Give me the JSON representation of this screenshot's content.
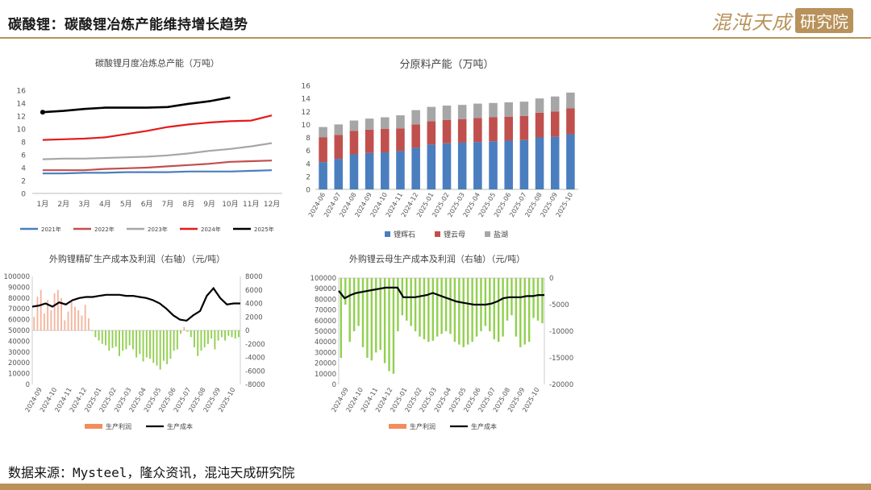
{
  "page": {
    "title": "碳酸锂：碳酸锂冶炼产能维持增长趋势",
    "logo_text": "混沌天成",
    "logo_box": "研究院",
    "source": "数据来源：Mysteel，隆众资讯，混沌天成研究院"
  },
  "colors": {
    "gold": "#b8925a"
  },
  "chart_data": [
    {
      "type": "line",
      "title": "碳酸锂月度冶炼总产能（万吨）",
      "categories": [
        "1月",
        "2月",
        "3月",
        "4月",
        "5月",
        "6月",
        "7月",
        "8月",
        "9月",
        "10月",
        "11月",
        "12月"
      ],
      "yticks": [
        "0",
        "2",
        "4",
        "6",
        "8",
        "10",
        "12",
        "14",
        "16"
      ],
      "ylim": [
        0,
        16
      ],
      "legend_position": "bottom",
      "series": [
        {
          "name": "2021年",
          "color": "#4a7ebf",
          "values": [
            3.1,
            3.1,
            3.2,
            3.2,
            3.3,
            3.3,
            3.3,
            3.4,
            3.4,
            3.4,
            3.5,
            3.6
          ]
        },
        {
          "name": "2022年",
          "color": "#c0504d",
          "values": [
            3.6,
            3.6,
            3.6,
            3.8,
            3.9,
            4.0,
            4.2,
            4.4,
            4.6,
            4.9,
            5.0,
            5.1
          ]
        },
        {
          "name": "2023年",
          "color": "#a6a6a6",
          "values": [
            5.3,
            5.4,
            5.4,
            5.5,
            5.6,
            5.7,
            5.9,
            6.2,
            6.6,
            6.9,
            7.3,
            7.8
          ]
        },
        {
          "name": "2024年",
          "color": "#e41a1c",
          "values": [
            8.3,
            8.4,
            8.5,
            8.7,
            9.2,
            9.7,
            10.3,
            10.7,
            11.0,
            11.2,
            11.3,
            12.1
          ]
        },
        {
          "name": "2025年",
          "color": "#000000",
          "values": [
            12.6,
            12.8,
            13.1,
            13.3,
            13.3,
            13.3,
            13.4,
            13.9,
            14.3,
            14.9,
            null,
            null
          ]
        }
      ]
    },
    {
      "type": "bar",
      "stacked": true,
      "title": "分原料产能（万吨）",
      "categories": [
        "2024-06",
        "2024-07",
        "2024-08",
        "2024-09",
        "2024-10",
        "2024-11",
        "2024-12",
        "2025-01",
        "2025-02",
        "2025-03",
        "2025-04",
        "2025-05",
        "2025-06",
        "2025-07",
        "2025-08",
        "2025-09",
        "2025-10"
      ],
      "yticks": [
        "0",
        "2",
        "4",
        "6",
        "8",
        "10",
        "12",
        "14",
        "16"
      ],
      "ylim": [
        0,
        16
      ],
      "legend_position": "bottom",
      "series": [
        {
          "name": "锂辉石",
          "color": "#4a7ebf",
          "values": [
            4.2,
            4.7,
            5.4,
            5.6,
            5.7,
            5.9,
            6.4,
            6.9,
            7.1,
            7.2,
            7.3,
            7.4,
            7.5,
            7.6,
            8.0,
            8.1,
            8.5
          ]
        },
        {
          "name": "锂云母",
          "color": "#c0504d",
          "values": [
            3.8,
            3.7,
            3.6,
            3.6,
            3.6,
            3.5,
            3.6,
            3.6,
            3.6,
            3.6,
            3.7,
            3.7,
            3.7,
            3.7,
            3.8,
            3.9,
            4.0
          ]
        },
        {
          "name": "盐湖",
          "color": "#a6a6a6",
          "values": [
            1.6,
            1.6,
            1.6,
            1.7,
            1.8,
            2.0,
            2.2,
            2.2,
            2.2,
            2.2,
            2.2,
            2.2,
            2.2,
            2.2,
            2.2,
            2.3,
            2.4
          ]
        }
      ]
    },
    {
      "type": "bar-line",
      "title": "外购锂精矿生产成本及利润（右轴）（元/吨）",
      "xticks": [
        "2024-09",
        "2024-10",
        "2024-11",
        "2024-12",
        "2025-01",
        "2025-02",
        "2025-03",
        "2025-04",
        "2025-05",
        "2025-06",
        "2025-07",
        "2025-08",
        "2025-09",
        "2025-10"
      ],
      "left_ticks": [
        "0",
        "10000",
        "20000",
        "30000",
        "40000",
        "50000",
        "60000",
        "70000",
        "80000",
        "90000",
        "100000"
      ],
      "right_ticks": [
        "-8000",
        "-6000",
        "-4000",
        "-2000",
        "0",
        "2000",
        "4000",
        "6000",
        "8000"
      ],
      "left_lim": [
        0,
        100000
      ],
      "right_lim": [
        -8000,
        8000
      ],
      "legend_position": "bottom",
      "series": [
        {
          "name": "生产利润",
          "color": "#f4a582",
          "axis": "right",
          "values": [
            2000,
            5000,
            6000,
            2500,
            4500,
            3000,
            5500,
            6000,
            4800,
            1500,
            2800,
            4200,
            3500,
            3000,
            2200,
            3800,
            1800,
            -100,
            -1000,
            -1500,
            -2000,
            -2200,
            -3000,
            -2600,
            -2400,
            -3800,
            -3000,
            -2800,
            -2200,
            -2800,
            -4000,
            -3500,
            -4600,
            -4000,
            -4200,
            -4800,
            -5200,
            -5800,
            -4500,
            -5000,
            -4200,
            -3000,
            -2800,
            -500,
            500,
            -200,
            -1000,
            -2500,
            -3800,
            -3000,
            -2500,
            -2000,
            -1200,
            -2800,
            -1500,
            -1000,
            -1500,
            -800,
            -1000,
            -1200,
            -1000
          ]
        },
        {
          "name": "生产成本",
          "color": "#000000",
          "axis": "left",
          "values": [
            72000,
            73000,
            75000,
            72000,
            76000,
            74000,
            78000,
            80000,
            81000,
            81000,
            82000,
            83000,
            83000,
            83000,
            82000,
            82000,
            81000,
            80000,
            78000,
            75000,
            70000,
            64000,
            60000,
            59000,
            64000,
            68000,
            82000,
            89000,
            80000,
            74000,
            75000,
            75000
          ]
        }
      ]
    },
    {
      "type": "bar-line",
      "title": "外购锂云母生产成本及利润（右轴）（元/吨）",
      "xticks": [
        "2024-09",
        "2024-10",
        "2024-11",
        "2024-12",
        "2025-01",
        "2025-02",
        "2025-03",
        "2025-04",
        "2025-05",
        "2025-06",
        "2025-07",
        "2025-08",
        "2025-09",
        "2025-10"
      ],
      "left_ticks": [
        "0",
        "10000",
        "20000",
        "30000",
        "40000",
        "50000",
        "60000",
        "70000",
        "80000",
        "90000",
        "100000"
      ],
      "right_ticks": [
        "-20000",
        "-15000",
        "-10000",
        "-5000",
        "0"
      ],
      "left_lim": [
        0,
        100000
      ],
      "right_lim": [
        -20000,
        0
      ],
      "legend_position": "bottom",
      "series": [
        {
          "name": "生产利润",
          "color": "#92d050",
          "axis": "right",
          "values": [
            -15000,
            -5000,
            -12000,
            -10000,
            -9000,
            -13000,
            -15000,
            -15500,
            -14000,
            -13500,
            -16000,
            -17500,
            -18000,
            -10000,
            -7000,
            -8000,
            -9000,
            -10000,
            -11000,
            -11500,
            -12000,
            -11800,
            -11000,
            -10500,
            -10000,
            -10500,
            -12000,
            -12500,
            -13000,
            -12500,
            -12000,
            -11000,
            -10000,
            -9000,
            -10000,
            -11500,
            -12000,
            -11000,
            -8000,
            -7000,
            -11000,
            -13000,
            -12500,
            -12000,
            -7500,
            -8000,
            -8500
          ]
        },
        {
          "name": "生产成本",
          "color": "#000000",
          "axis": "left",
          "values": [
            88000,
            81000,
            84000,
            86000,
            87000,
            88000,
            89000,
            90000,
            91000,
            91000,
            91000,
            82000,
            82000,
            82000,
            83000,
            84000,
            86000,
            84000,
            82000,
            80000,
            78000,
            77000,
            76000,
            75000,
            75000,
            75000,
            76000,
            78000,
            81000,
            82000,
            82000,
            82000,
            83000,
            83000,
            84000,
            84000
          ]
        }
      ]
    }
  ]
}
